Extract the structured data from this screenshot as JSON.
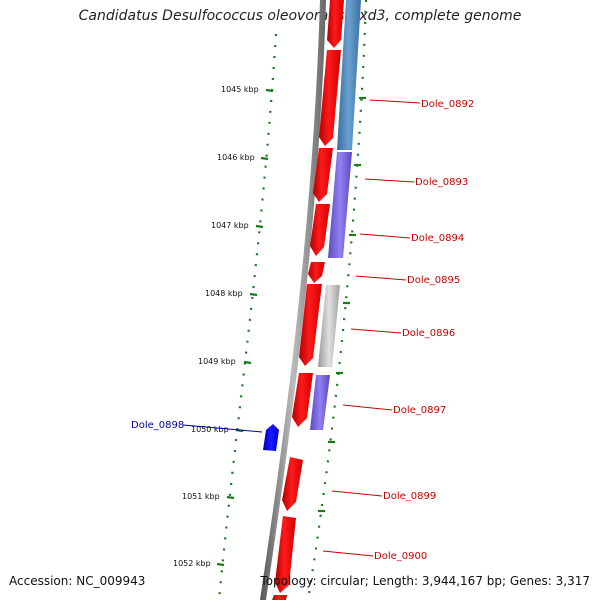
{
  "title": "Candidatus Desulfococcus oleovorans Hxd3, complete genome",
  "footer": {
    "accession": "Accession: NC_009943",
    "summary": "Topology: circular; Length: 3,944,167 bp; Genes: 3,317"
  },
  "colors": {
    "forward_gene": "#ff0000",
    "reverse_gene": "#0000ff",
    "label_red": "#cc0000",
    "label_blue": "#0000aa",
    "tick_green": "#1a7a1a",
    "backbone": "#888888",
    "cog_blue": "#4682b4",
    "cog_purple": "#7b68ee",
    "cog_grey": "#c0c0c0"
  },
  "kbp_ticks": [
    "1045 kbp",
    "1046 kbp",
    "1047 kbp",
    "1048 kbp",
    "1049 kbp",
    "1050 kbp",
    "1051 kbp",
    "1052 kbp"
  ],
  "gene_labels": [
    {
      "text": "Dole_0892",
      "color": "red"
    },
    {
      "text": "Dole_0893",
      "color": "red"
    },
    {
      "text": "Dole_0894",
      "color": "red"
    },
    {
      "text": "Dole_0895",
      "color": "red"
    },
    {
      "text": "Dole_0896",
      "color": "red"
    },
    {
      "text": "Dole_0897",
      "color": "red"
    },
    {
      "text": "Dole_0898",
      "color": "blue"
    },
    {
      "text": "Dole_0899",
      "color": "red"
    },
    {
      "text": "Dole_0900",
      "color": "red"
    }
  ]
}
